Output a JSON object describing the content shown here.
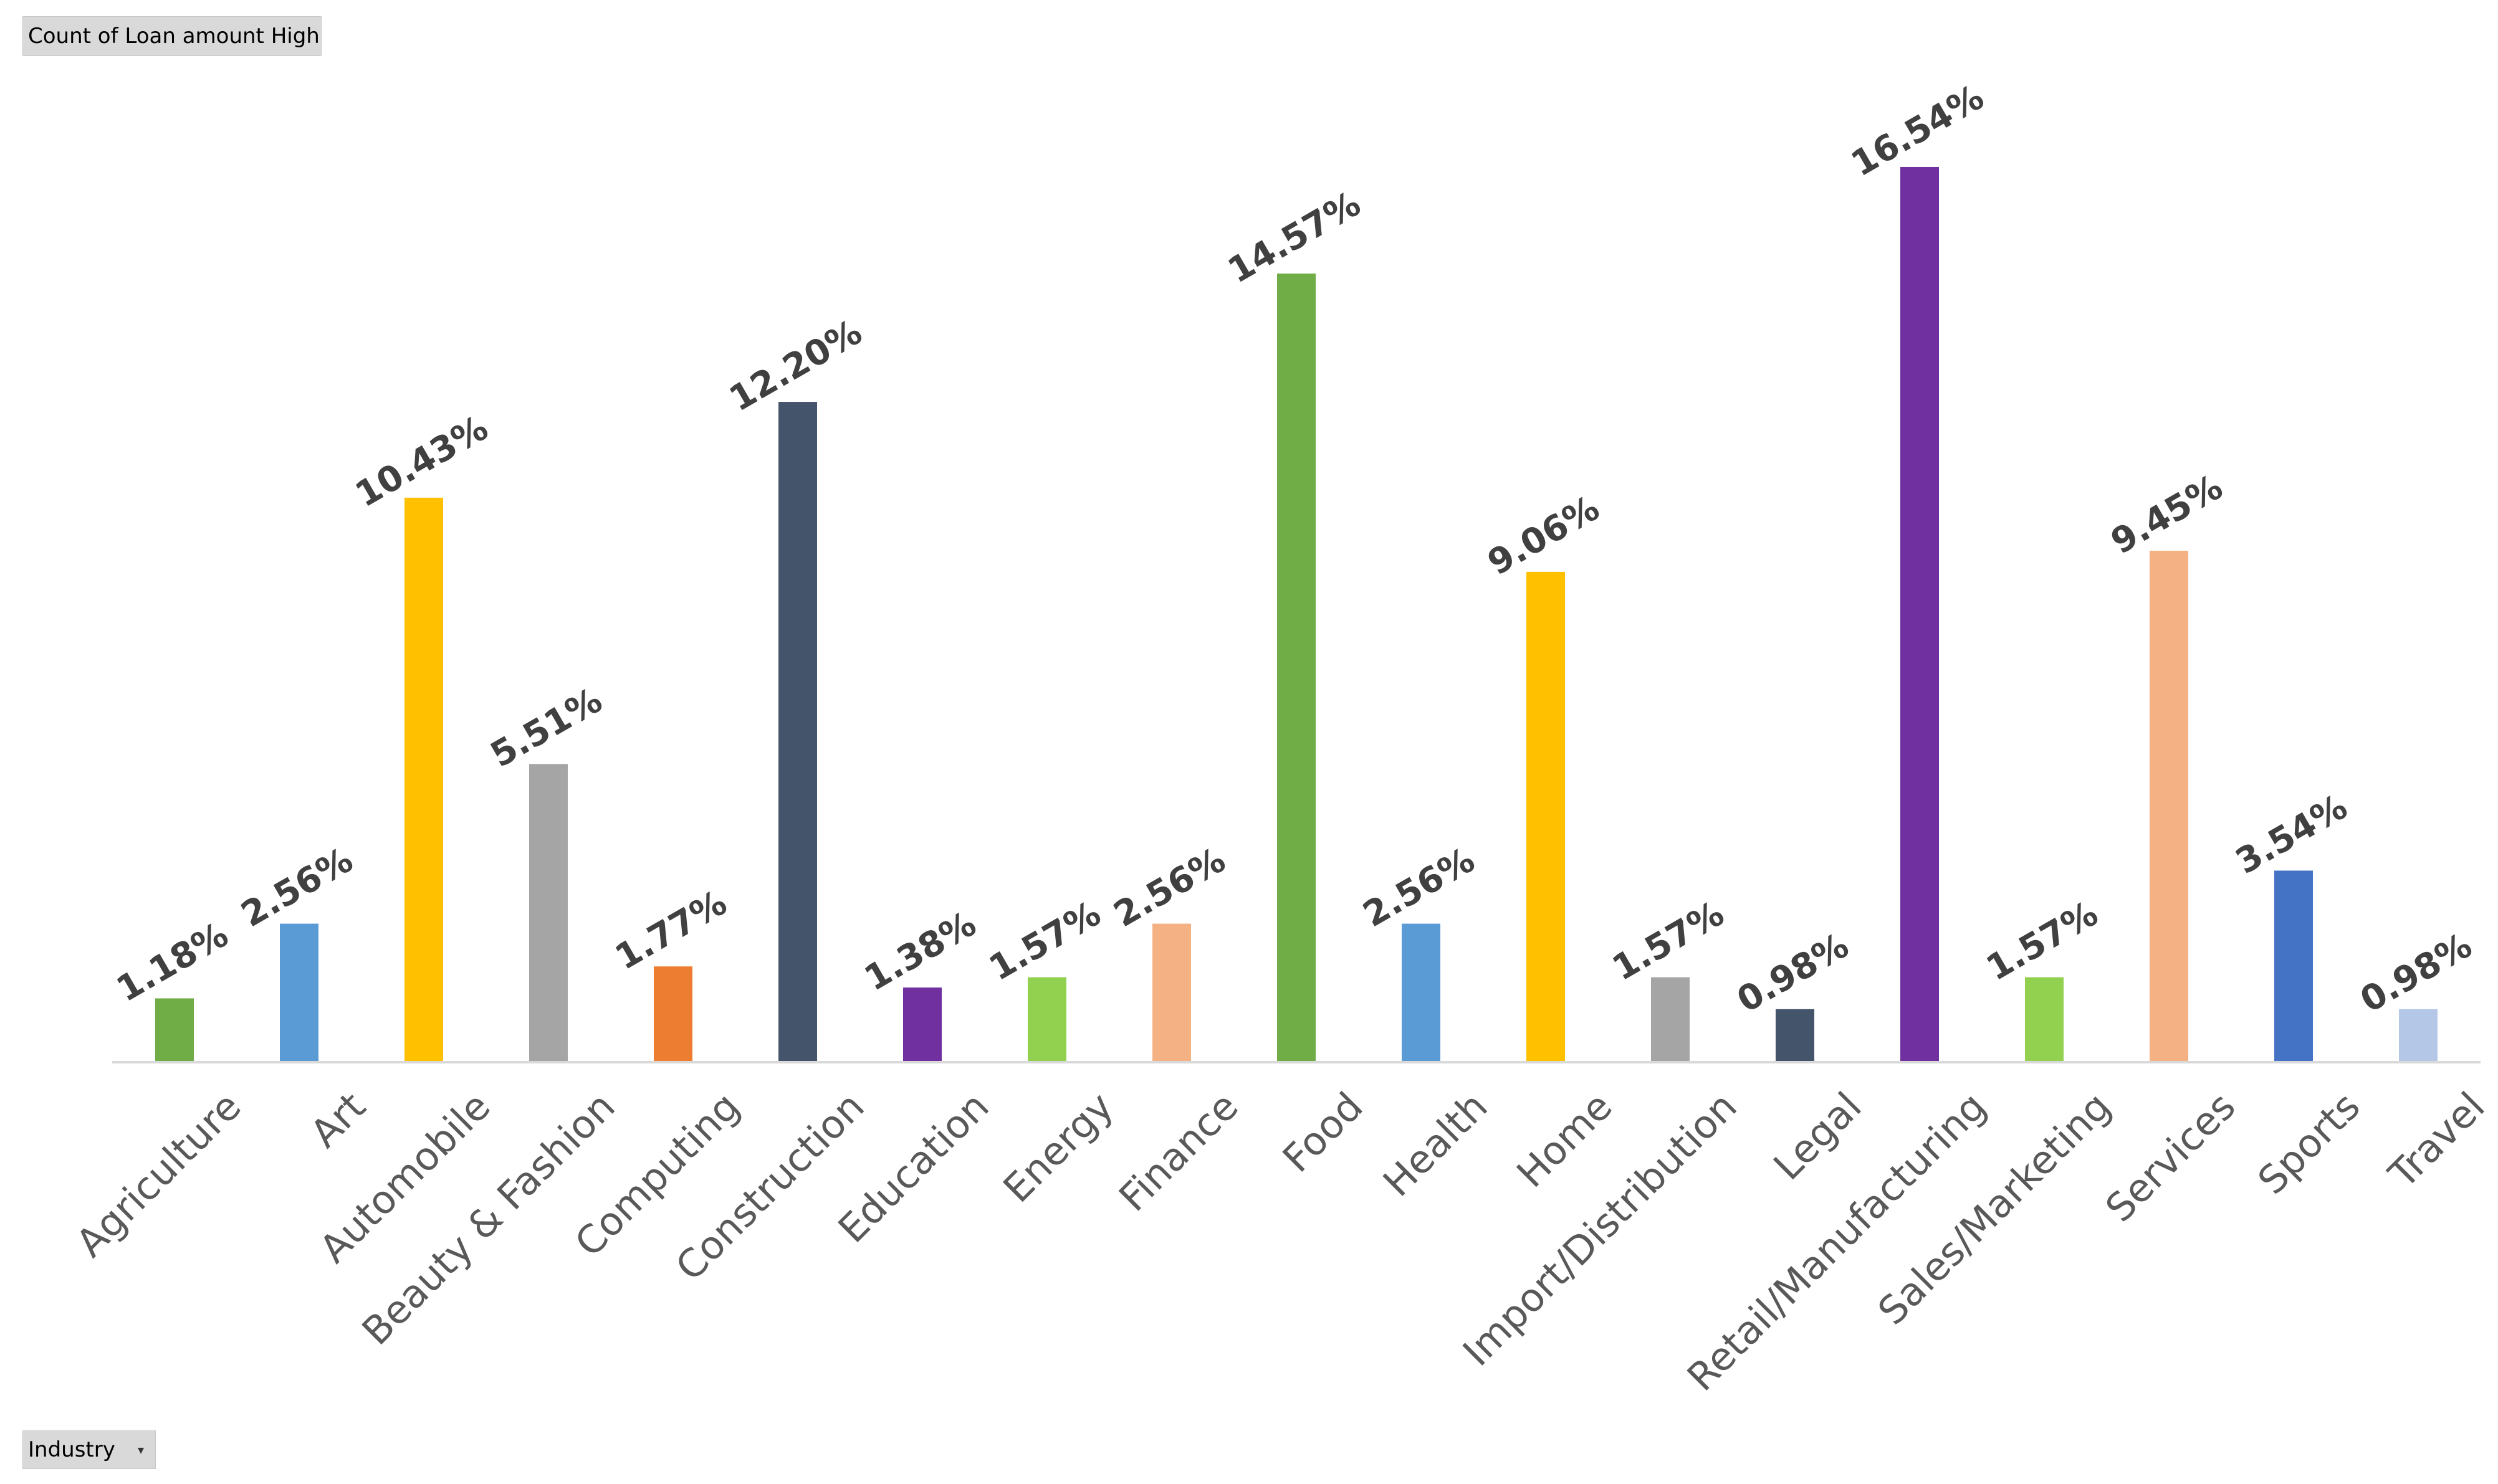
{
  "pivot": {
    "value_field": "Count of Loan amount High",
    "axis_field": "Industry",
    "axis_field_dropdown_icon": "filter-dropdown-icon"
  },
  "chart_data": {
    "type": "bar",
    "title": "",
    "xlabel": "",
    "ylabel": "",
    "ylim": [
      0,
      16.54
    ],
    "grid": false,
    "legend": "none",
    "categories": [
      "Agriculture",
      "Art",
      "Automobile",
      "Beauty & Fashion",
      "Computing",
      "Construction",
      "Education",
      "Energy",
      "Finance",
      "Food",
      "Health",
      "Home",
      "Import/Distribution",
      "Legal",
      "Retail/Manufacturing",
      "Sales/Marketing",
      "Services",
      "Sports",
      "Travel"
    ],
    "values": [
      1.18,
      2.56,
      10.43,
      5.51,
      1.77,
      12.2,
      1.38,
      1.57,
      2.56,
      14.57,
      2.56,
      9.06,
      1.57,
      0.98,
      16.54,
      1.57,
      9.45,
      3.54,
      0.98
    ],
    "data_labels": [
      "1.18%",
      "2.56%",
      "10.43%",
      "5.51%",
      "1.77%",
      "12.20%",
      "1.38%",
      "1.57%",
      "2.56%",
      "14.57%",
      "2.56%",
      "9.06%",
      "1.57%",
      "0.98%",
      "16.54%",
      "1.57%",
      "9.45%",
      "3.54%",
      "0.98%"
    ],
    "colors": [
      "#70AD47",
      "#5B9BD5",
      "#FFC000",
      "#A5A5A5",
      "#ED7D31",
      "#44546A",
      "#7030A0",
      "#92D050",
      "#F4B183",
      "#70AD47",
      "#5B9BD5",
      "#FFC000",
      "#A5A5A5",
      "#44546A",
      "#7030A0",
      "#92D050",
      "#F4B183",
      "#4472C4",
      "#B4C7E7"
    ],
    "axis_color": "#D9D9D9"
  }
}
